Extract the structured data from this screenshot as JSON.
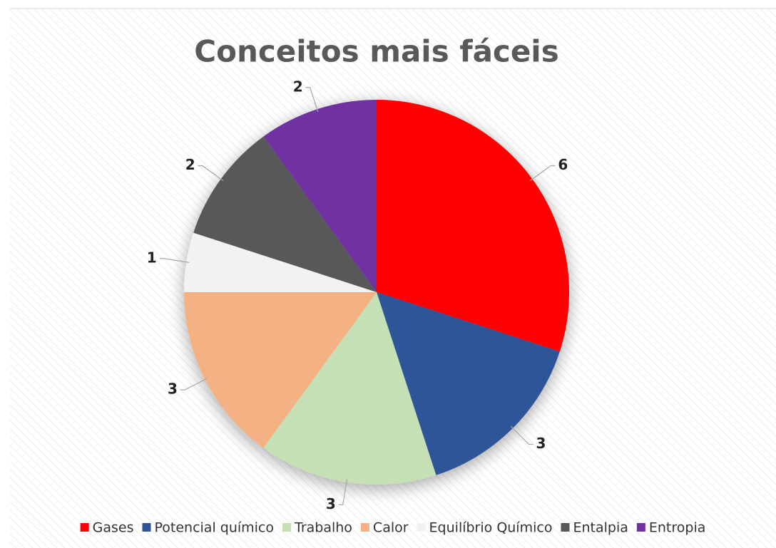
{
  "chart_data": {
    "type": "pie",
    "title": "Conceitos mais fáceis",
    "categories": [
      "Gases",
      "Potencial químico",
      "Trabalho",
      "Calor",
      "Equilíbrio Químico",
      "Entalpia",
      "Entropia"
    ],
    "values": [
      6,
      3,
      3,
      3,
      1,
      2,
      2
    ],
    "colors": [
      "#ff0000",
      "#2f5597",
      "#c5e0b4",
      "#f4b183",
      "#f2f2f2",
      "#595959",
      "#7030a0"
    ],
    "legend": "bottom"
  }
}
